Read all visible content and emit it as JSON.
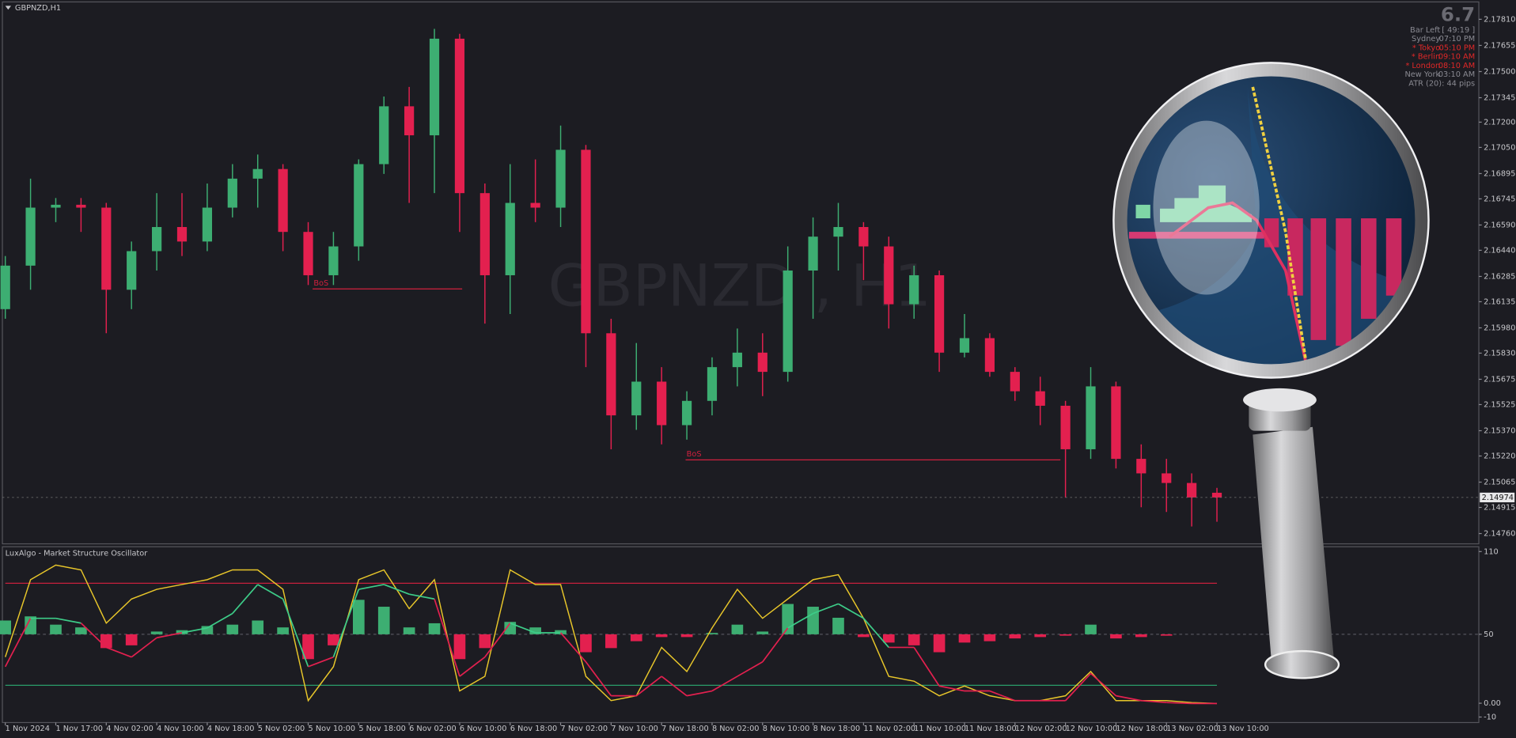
{
  "window": {
    "title": "GBPNZD,H1",
    "watermark": "GBPNZD , H1"
  },
  "info_panel": {
    "spread": "6.7",
    "rows": [
      {
        "label": "Bar Left",
        "value": "[ 49:19 ]",
        "color": "#8a8a92"
      },
      {
        "label": "Sydney",
        "value": "07:10 PM",
        "color": "#8a8a92"
      },
      {
        "label": "* Tokyo",
        "value": "05:10 PM",
        "color": "#e02828"
      },
      {
        "label": "* Berlin",
        "value": "09:10 AM",
        "color": "#e02828"
      },
      {
        "label": "* London",
        "value": "08:10 AM",
        "color": "#e02828"
      },
      {
        "label": "New York",
        "value": "03:10 AM",
        "color": "#8a8a92"
      },
      {
        "label": "ATR (20): 44 pips",
        "color": "#8a8a92"
      }
    ]
  },
  "chart_data": [
    {
      "type": "candlestick",
      "up_color": "#3dae72",
      "down_color": "#e3204f",
      "x": [
        0,
        4,
        8,
        12,
        16,
        20,
        24,
        28,
        32,
        36,
        40,
        44,
        48,
        52,
        56,
        60,
        64,
        68,
        72,
        76,
        80,
        84,
        88,
        92,
        96,
        100,
        104,
        108,
        112,
        116,
        120,
        124,
        128,
        132,
        136,
        140,
        144,
        148,
        152,
        156,
        160,
        164,
        168,
        172,
        176,
        180,
        184,
        188,
        192
      ],
      "open": [
        2.16091,
        2.16349,
        2.16693,
        2.1671,
        2.16693,
        2.16206,
        2.16435,
        2.16578,
        2.16492,
        2.16693,
        2.16865,
        2.16922,
        2.16549,
        2.16292,
        2.16463,
        2.16951,
        2.17294,
        2.17122,
        2.17695,
        2.16779,
        2.16292,
        2.16721,
        2.16693,
        2.17036,
        2.15948,
        2.15461,
        2.15661,
        2.15403,
        2.15547,
        2.15747,
        2.15833,
        2.15719,
        2.1632,
        2.16521,
        2.16578,
        2.16463,
        2.1612,
        2.16292,
        2.15833,
        2.15919,
        2.15719,
        2.15604,
        2.15518,
        2.1526,
        2.15633,
        2.15203,
        2.15117,
        2.1506,
        2.15002
      ],
      "high": [
        2.16406,
        2.16865,
        2.1675,
        2.1675,
        2.16721,
        2.16492,
        2.16779,
        2.16779,
        2.16836,
        2.16951,
        2.17008,
        2.16951,
        2.16607,
        2.16549,
        2.16979,
        2.17352,
        2.17409,
        2.17753,
        2.17724,
        2.16836,
        2.16951,
        2.16979,
        2.1718,
        2.17065,
        2.16034,
        2.1589,
        2.15747,
        2.15604,
        2.15805,
        2.15976,
        2.15948,
        2.16463,
        2.16635,
        2.16721,
        2.16607,
        2.16521,
        2.16349,
        2.1632,
        2.16062,
        2.15948,
        2.15747,
        2.1569,
        2.15547,
        2.15747,
        2.15661,
        2.15289,
        2.15203,
        2.15117,
        2.15031
      ],
      "low": [
        2.16034,
        2.16206,
        2.16607,
        2.16549,
        2.15948,
        2.16091,
        2.1632,
        2.16406,
        2.16435,
        2.16635,
        2.16693,
        2.16435,
        2.16234,
        2.16234,
        2.16378,
        2.16893,
        2.16721,
        2.16779,
        2.16549,
        2.16005,
        2.16062,
        2.16607,
        2.16578,
        2.15747,
        2.1526,
        2.15375,
        2.15289,
        2.15317,
        2.15461,
        2.15633,
        2.15575,
        2.15661,
        2.16034,
        2.1632,
        2.16263,
        2.15976,
        2.16034,
        2.15719,
        2.15805,
        2.1569,
        2.15547,
        2.15403,
        2.14974,
        2.15203,
        2.15146,
        2.14916,
        2.14888,
        2.14802,
        2.1483
      ],
      "close": [
        2.16349,
        2.16693,
        2.1671,
        2.16693,
        2.16206,
        2.16435,
        2.16578,
        2.16492,
        2.16693,
        2.16865,
        2.16922,
        2.16549,
        2.16292,
        2.16463,
        2.16951,
        2.17294,
        2.17122,
        2.17695,
        2.16779,
        2.16292,
        2.16721,
        2.16693,
        2.17036,
        2.15948,
        2.15461,
        2.15661,
        2.15403,
        2.15547,
        2.15747,
        2.15833,
        2.15719,
        2.1632,
        2.16521,
        2.16578,
        2.16463,
        2.1612,
        2.16292,
        2.15833,
        2.15919,
        2.15719,
        2.15604,
        2.15518,
        2.1526,
        2.15633,
        2.15203,
        2.15117,
        2.1506,
        2.14974,
        2.14974
      ],
      "xlim": [
        -0.46,
        233.5
      ],
      "ylim": [
        2.14699,
        2.17913
      ],
      "yticks": [
        {
          "value": 2.1781,
          "label": "2.17810"
        },
        {
          "value": 2.17655,
          "label": "2.17655"
        },
        {
          "value": 2.175,
          "label": "2.17500"
        },
        {
          "value": 2.17345,
          "label": "2.17345"
        },
        {
          "value": 2.172,
          "label": "2.17200"
        },
        {
          "value": 2.1705,
          "label": "2.17050"
        },
        {
          "value": 2.16895,
          "label": "2.16895"
        },
        {
          "value": 2.16745,
          "label": "2.16745"
        },
        {
          "value": 2.1659,
          "label": "2.16590"
        },
        {
          "value": 2.1644,
          "label": "2.16440"
        },
        {
          "value": 2.16285,
          "label": "2.16285"
        },
        {
          "value": 2.16135,
          "label": "2.16135"
        },
        {
          "value": 2.1598,
          "label": "2.15980"
        },
        {
          "value": 2.1583,
          "label": "2.15830"
        },
        {
          "value": 2.15675,
          "label": "2.15675"
        },
        {
          "value": 2.15525,
          "label": "2.15525"
        },
        {
          "value": 2.1537,
          "label": "2.15370"
        },
        {
          "value": 2.1522,
          "label": "2.15220"
        },
        {
          "value": 2.15065,
          "label": "2.15065"
        },
        {
          "value": 2.14915,
          "label": "2.14915"
        },
        {
          "value": 2.1476,
          "label": "2.14760"
        }
      ],
      "current_price": {
        "value": 2.14974,
        "label": "2.14974"
      },
      "annotations": [
        {
          "label": "BoS",
          "price": 2.16211,
          "x_start": 48.7,
          "x_end": 72.4,
          "color": "#d0203e"
        },
        {
          "label": "BoS",
          "price": 2.15197,
          "x_start": 107.8,
          "x_end": 167.2,
          "color": "#d0203e"
        }
      ]
    },
    {
      "type": "oscillator",
      "title": "LuxAlgo - Market Structure Oscillator",
      "x": [
        0,
        4,
        8,
        12,
        16,
        20,
        24,
        28,
        32,
        36,
        40,
        44,
        48,
        52,
        56,
        60,
        64,
        68,
        72,
        76,
        80,
        84,
        88,
        92,
        96,
        100,
        104,
        108,
        112,
        116,
        120,
        124,
        128,
        132,
        136,
        140,
        144,
        148,
        152,
        156,
        160,
        164,
        168,
        172,
        176,
        180,
        184,
        188,
        192
      ],
      "xlim": [
        -0.46,
        233.5
      ],
      "ylim": [
        -14,
        113.5
      ],
      "yticks": [
        110,
        50,
        {
          "value": 0,
          "label": "0.00"
        },
        -10
      ],
      "xticks": [
        {
          "value": 0,
          "label": "1 Nov 2024"
        },
        {
          "value": 8,
          "label": "1 Nov 17:00"
        },
        {
          "value": 16,
          "label": "4 Nov 02:00"
        },
        {
          "value": 24,
          "label": "4 Nov 10:00"
        },
        {
          "value": 32,
          "label": "4 Nov 18:00"
        },
        {
          "value": 40,
          "label": "5 Nov 02:00"
        },
        {
          "value": 48,
          "label": "5 Nov 10:00"
        },
        {
          "value": 56,
          "label": "5 Nov 18:00"
        },
        {
          "value": 64,
          "label": "6 Nov 02:00"
        },
        {
          "value": 72,
          "label": "6 Nov 10:00"
        },
        {
          "value": 80,
          "label": "6 Nov 18:00"
        },
        {
          "value": 88,
          "label": "7 Nov 02:00"
        },
        {
          "value": 96,
          "label": "7 Nov 10:00"
        },
        {
          "value": 104,
          "label": "7 Nov 18:00"
        },
        {
          "value": 112,
          "label": "8 Nov 02:00"
        },
        {
          "value": 120,
          "label": "8 Nov 10:00"
        },
        {
          "value": 128,
          "label": "8 Nov 18:00"
        },
        {
          "value": 136,
          "label": "11 Nov 02:00"
        },
        {
          "value": 144,
          "label": "11 Nov 10:00"
        },
        {
          "value": 152,
          "label": "11 Nov 18:00"
        },
        {
          "value": 160,
          "label": "12 Nov 02:00"
        },
        {
          "value": 168,
          "label": "12 Nov 10:00"
        },
        {
          "value": 176,
          "label": "12 Nov 18:00"
        },
        {
          "value": 184,
          "label": "13 Nov 02:00"
        },
        {
          "value": 192,
          "label": "13 Nov 10:00"
        }
      ],
      "base": 50,
      "levels": [
        {
          "value": 87,
          "color": "#c8203d"
        },
        {
          "value": 13,
          "color": "#2a9d6a"
        }
      ],
      "histogram": {
        "color_above": "#3dae72",
        "color_below": "#e3204f",
        "values": [
          60,
          63,
          57,
          55,
          40,
          42,
          52,
          53,
          56,
          57,
          60,
          55,
          32,
          42,
          75,
          70,
          55,
          58,
          32,
          40,
          59,
          55,
          53,
          37,
          40,
          45,
          48,
          48,
          51,
          57,
          52,
          72,
          70,
          62,
          48,
          44,
          42,
          37,
          44,
          45,
          47,
          48,
          49,
          57,
          47,
          48,
          49,
          50,
          50
        ]
      },
      "fast": {
        "color": "#e8c62a",
        "values": [
          33.5,
          89.6,
          100.2,
          96.7,
          58.1,
          75.6,
          82.6,
          86.1,
          89.6,
          96.7,
          96.7,
          82.6,
          1.9,
          26.5,
          89.6,
          96.7,
          68.6,
          89.6,
          8.9,
          19.5,
          96.7,
          86.1,
          86.1,
          19.5,
          1.9,
          5.4,
          40.5,
          23.0,
          54.6,
          82.6,
          61.6,
          75.6,
          89.6,
          93.2,
          61.6,
          19.5,
          16.0,
          5.4,
          12.5,
          5.4,
          1.9,
          1.9,
          5.4,
          23.0,
          1.9,
          1.9,
          1.9,
          0.5,
          -0.2
        ]
      },
      "slow": {
        "color_above": "#3dcc88",
        "color_below": "#e3204f",
        "values": [
          26.5,
          61.6,
          61.6,
          58.1,
          40.5,
          33.5,
          47.5,
          51.1,
          54.6,
          65.1,
          86.1,
          75.6,
          26.5,
          33.5,
          82.6,
          86.1,
          79.1,
          75.6,
          19.5,
          33.5,
          58.1,
          51.1,
          51.1,
          30.0,
          5.4,
          5.4,
          19.5,
          5.4,
          8.9,
          19.5,
          30.0,
          54.6,
          65.1,
          72.1,
          61.6,
          40.5,
          40.5,
          12.5,
          8.9,
          8.9,
          1.9,
          1.9,
          1.9,
          21.6,
          5.4,
          1.9,
          0.5,
          -0.2,
          -0.2
        ]
      }
    }
  ]
}
